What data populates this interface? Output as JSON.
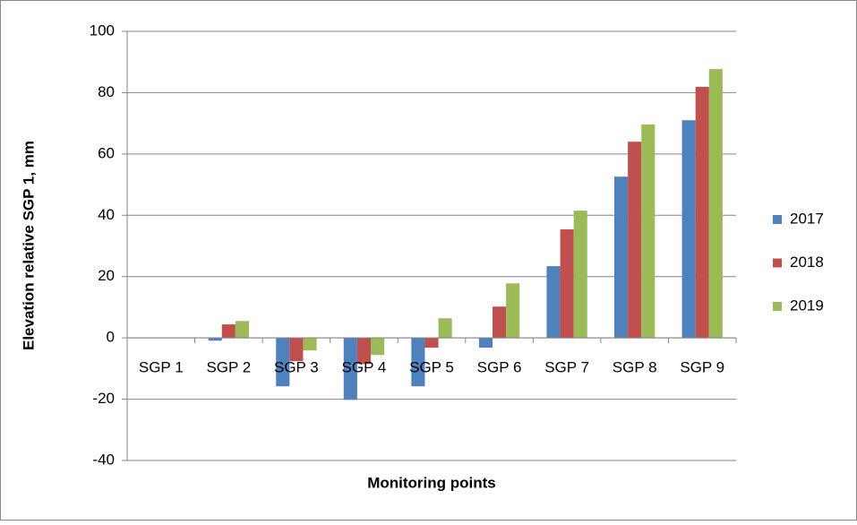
{
  "chart_data": {
    "type": "bar",
    "x_label": "Monitoring points",
    "y_label": "Elevation relative SGP 1, mm",
    "categories": [
      "SGP 1",
      "SGP 2",
      "SGP 3",
      "SGP 4",
      "SGP 5",
      "SGP 6",
      "SGP 7",
      "SGP 8",
      "SGP 9"
    ],
    "series": [
      {
        "name": "2017",
        "color": "#4f81bd",
        "values": [
          0,
          -0.9,
          -15.8,
          -20.2,
          -15.8,
          -3.2,
          23.4,
          52.6,
          71.0
        ]
      },
      {
        "name": "2018",
        "color": "#c0504d",
        "values": [
          0,
          4.4,
          -7.6,
          -8.5,
          -3.2,
          10.2,
          35.4,
          64.0,
          81.9
        ]
      },
      {
        "name": "2019",
        "color": "#9bbb59",
        "values": [
          0,
          5.5,
          -4.1,
          -5.6,
          6.4,
          17.8,
          41.5,
          69.6,
          87.7
        ]
      }
    ],
    "ylim": [
      -40,
      100
    ],
    "yticks": [
      -40,
      -20,
      0,
      20,
      40,
      60,
      80,
      100
    ],
    "grid": true,
    "legend": "right"
  }
}
